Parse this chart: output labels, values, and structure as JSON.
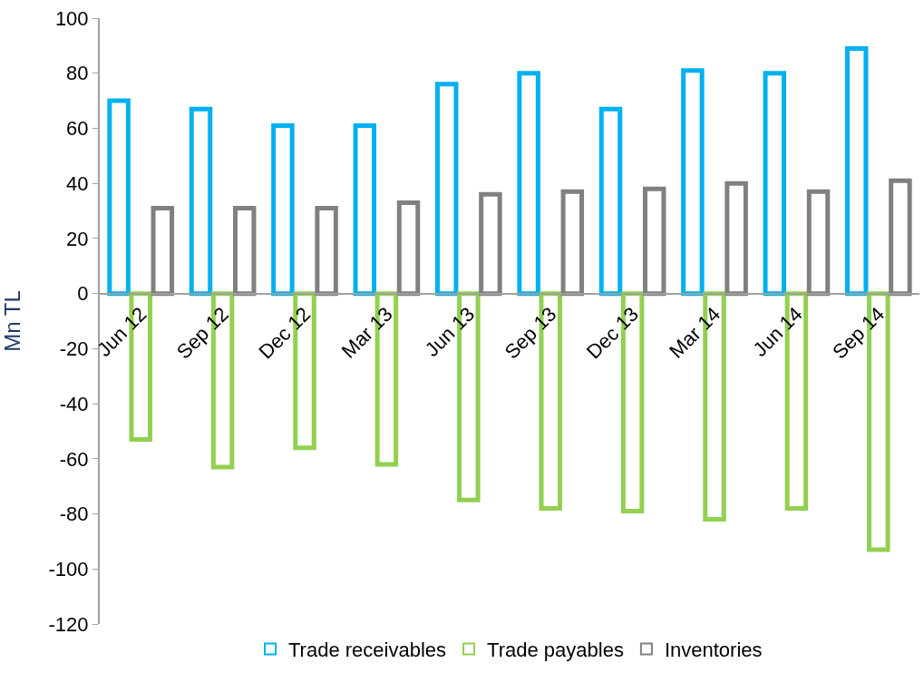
{
  "chart_data": {
    "type": "bar",
    "ylabel": "Mn TL",
    "categories": [
      "Jun 12",
      "Sep 12",
      "Dec 12",
      "Mar 13",
      "Jun 13",
      "Sep 13",
      "Dec 13",
      "Mar 14",
      "Jun 14",
      "Sep 14"
    ],
    "series": [
      {
        "name": "Trade receivables",
        "color": "#00b0f0",
        "values": [
          70,
          67,
          61,
          61,
          76,
          80,
          67,
          81,
          80,
          89
        ]
      },
      {
        "name": "Trade payables",
        "color": "#92d050",
        "values": [
          -53,
          -63,
          -56,
          -62,
          -75,
          -78,
          -79,
          -82,
          -78,
          -93
        ]
      },
      {
        "name": "Inventories",
        "color": "#808080",
        "values": [
          31,
          31,
          31,
          33,
          36,
          37,
          38,
          40,
          37,
          41
        ]
      }
    ],
    "ylim": [
      -120,
      100
    ],
    "yticks": [
      -120,
      -100,
      -80,
      -60,
      -40,
      -20,
      0,
      20,
      40,
      60,
      80,
      100
    ],
    "legend": "bottom"
  }
}
